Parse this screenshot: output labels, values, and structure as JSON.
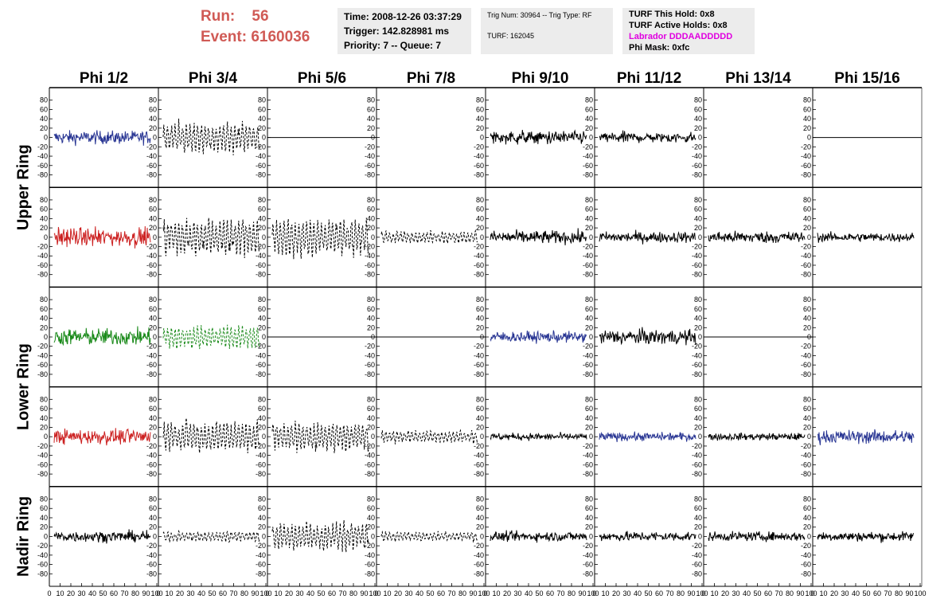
{
  "header": {
    "run_label": "Run:",
    "run_value": "56",
    "event_label": "Event:",
    "event_value": "6160036",
    "time": "Time: 2008-12-26 03:37:29",
    "trigger": "Trigger: 142.828981 ms",
    "priority": "Priority: 7 -- Queue: 7",
    "trig_num": "Trig Num: 30964 -- Trig Type: RF",
    "turf": "TURF: 162045",
    "turf_this_hold": "TURF This Hold: 0x8",
    "turf_active_holds": "TURF Active Holds: 0x8",
    "labrador": "Labrador DDDAADDDDD",
    "phi_mask": "Phi Mask: 0xfc"
  },
  "colors": {
    "header_red": "#d05a55",
    "labrador_magenta": "#e000e0",
    "trace_black": "#000000",
    "trace_blue": "#283593",
    "trace_red": "#cc2020",
    "trace_green": "#1a8a1a"
  },
  "chart_data": {
    "type": "line",
    "columns": [
      "Phi 1/2",
      "Phi 3/4",
      "Phi 5/6",
      "Phi 7/8",
      "Phi 9/10",
      "Phi 11/12",
      "Phi 13/14",
      "Phi 15/16"
    ],
    "ring_labels": [
      "Upper Ring",
      "Lower Ring",
      "Nadir Ring"
    ],
    "rows": 5,
    "ylim": [
      -100,
      100
    ],
    "yticks": [
      -80,
      -60,
      -40,
      -20,
      0,
      20,
      40,
      60,
      80
    ],
    "xlim": [
      0,
      100
    ],
    "xtick_labels": [
      "0",
      "10",
      "20",
      "30",
      "40",
      "50",
      "60",
      "70",
      "80",
      "90",
      "100"
    ],
    "grid": false,
    "panels": [
      {
        "row": 0,
        "col": 0,
        "color": "blue",
        "style": "solid",
        "amplitude": 22
      },
      {
        "row": 0,
        "col": 1,
        "color": "black",
        "style": "dashed",
        "amplitude": 45
      },
      {
        "row": 0,
        "col": 2,
        "color": "black",
        "style": "flat",
        "amplitude": 0
      },
      {
        "row": 0,
        "col": 3,
        "color": "black",
        "style": "empty",
        "amplitude": 0
      },
      {
        "row": 0,
        "col": 4,
        "color": "black",
        "style": "solid",
        "amplitude": 22
      },
      {
        "row": 0,
        "col": 5,
        "color": "black",
        "style": "solid",
        "amplitude": 18
      },
      {
        "row": 0,
        "col": 6,
        "color": "black",
        "style": "empty",
        "amplitude": 0
      },
      {
        "row": 0,
        "col": 7,
        "color": "black",
        "style": "flat",
        "amplitude": 0
      },
      {
        "row": 1,
        "col": 0,
        "color": "red",
        "style": "solid",
        "amplitude": 30
      },
      {
        "row": 1,
        "col": 1,
        "color": "black",
        "style": "dashed",
        "amplitude": 55
      },
      {
        "row": 1,
        "col": 2,
        "color": "black",
        "style": "dashed",
        "amplitude": 55
      },
      {
        "row": 1,
        "col": 3,
        "color": "black",
        "style": "dashed",
        "amplitude": 18
      },
      {
        "row": 1,
        "col": 4,
        "color": "black",
        "style": "solid",
        "amplitude": 22
      },
      {
        "row": 1,
        "col": 5,
        "color": "black",
        "style": "solid",
        "amplitude": 18
      },
      {
        "row": 1,
        "col": 6,
        "color": "black",
        "style": "solid",
        "amplitude": 20
      },
      {
        "row": 1,
        "col": 7,
        "color": "black",
        "style": "solid",
        "amplitude": 15
      },
      {
        "row": 2,
        "col": 0,
        "color": "green",
        "style": "solid",
        "amplitude": 28
      },
      {
        "row": 2,
        "col": 1,
        "color": "green",
        "style": "dashed",
        "amplitude": 35
      },
      {
        "row": 2,
        "col": 2,
        "color": "black",
        "style": "flat",
        "amplitude": 0
      },
      {
        "row": 2,
        "col": 3,
        "color": "black",
        "style": "flat",
        "amplitude": 0
      },
      {
        "row": 2,
        "col": 4,
        "color": "blue",
        "style": "solid",
        "amplitude": 18
      },
      {
        "row": 2,
        "col": 5,
        "color": "black",
        "style": "solid",
        "amplitude": 25
      },
      {
        "row": 2,
        "col": 6,
        "color": "black",
        "style": "flat",
        "amplitude": 0
      },
      {
        "row": 2,
        "col": 7,
        "color": "black",
        "style": "empty",
        "amplitude": 0
      },
      {
        "row": 3,
        "col": 0,
        "color": "red",
        "style": "solid",
        "amplitude": 25
      },
      {
        "row": 3,
        "col": 1,
        "color": "black",
        "style": "dashed",
        "amplitude": 45
      },
      {
        "row": 3,
        "col": 2,
        "color": "black",
        "style": "dashed",
        "amplitude": 45
      },
      {
        "row": 3,
        "col": 3,
        "color": "black",
        "style": "dashed",
        "amplitude": 18
      },
      {
        "row": 3,
        "col": 4,
        "color": "black",
        "style": "solid",
        "amplitude": 12
      },
      {
        "row": 3,
        "col": 5,
        "color": "blue",
        "style": "solid",
        "amplitude": 14
      },
      {
        "row": 3,
        "col": 6,
        "color": "black",
        "style": "solid",
        "amplitude": 12
      },
      {
        "row": 3,
        "col": 7,
        "color": "blue",
        "style": "solid",
        "amplitude": 22
      },
      {
        "row": 4,
        "col": 0,
        "color": "black",
        "style": "solid",
        "amplitude": 18
      },
      {
        "row": 4,
        "col": 1,
        "color": "black",
        "style": "dashed",
        "amplitude": 15
      },
      {
        "row": 4,
        "col": 2,
        "color": "black",
        "style": "dashed",
        "amplitude": 40
      },
      {
        "row": 4,
        "col": 3,
        "color": "black",
        "style": "dashed",
        "amplitude": 14
      },
      {
        "row": 4,
        "col": 4,
        "color": "black",
        "style": "solid",
        "amplitude": 16
      },
      {
        "row": 4,
        "col": 5,
        "color": "black",
        "style": "solid",
        "amplitude": 16
      },
      {
        "row": 4,
        "col": 6,
        "color": "black",
        "style": "solid",
        "amplitude": 15
      },
      {
        "row": 4,
        "col": 7,
        "color": "black",
        "style": "solid",
        "amplitude": 16
      }
    ]
  }
}
